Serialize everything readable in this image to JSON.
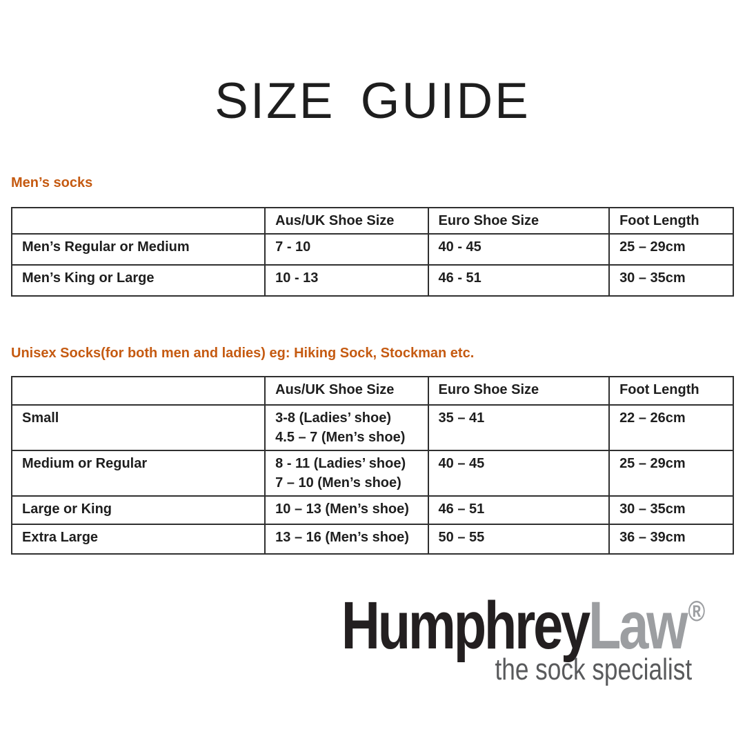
{
  "page": {
    "title": "SIZE GUIDE"
  },
  "colors": {
    "heading_orange": "#C55A11",
    "text_black": "#1e1e1e",
    "table_border": "#2f2f2f",
    "logo_black": "#231f20",
    "logo_gray": "#9c9ea1",
    "tagline_gray": "#595a5c"
  },
  "mens_socks": {
    "heading": "Men’s socks",
    "columns": [
      "",
      "Aus/UK Shoe Size",
      "Euro Shoe Size",
      "Foot Length"
    ],
    "rows": [
      {
        "size": "Men’s Regular or Medium",
        "aus_uk": [
          "7 - 10"
        ],
        "euro": [
          "40 - 45"
        ],
        "foot_length": [
          "25 – 29cm"
        ]
      },
      {
        "size": "Men’s King or Large",
        "aus_uk": [
          "10 - 13"
        ],
        "euro": [
          "46 - 51"
        ],
        "foot_length": [
          "30 – 35cm"
        ]
      }
    ]
  },
  "unisex_socks": {
    "heading": "Unisex Socks(for both men and ladies) eg: Hiking Sock, Stockman etc.",
    "columns": [
      "",
      "Aus/UK Shoe Size",
      "Euro Shoe Size",
      "Foot Length"
    ],
    "rows": [
      {
        "size": "Small",
        "aus_uk": [
          "3-8 (Ladies’ shoe)",
          "4.5 – 7 (Men’s shoe)"
        ],
        "euro": [
          "35 – 41"
        ],
        "foot_length": [
          "22 – 26cm"
        ]
      },
      {
        "size": "Medium or Regular",
        "aus_uk": [
          "8 - 11 (Ladies’ shoe)",
          "7 – 10 (Men’s shoe)"
        ],
        "euro": [
          "40 – 45"
        ],
        "foot_length": [
          "25 – 29cm"
        ]
      },
      {
        "size": "Large or King",
        "aus_uk": [
          "10 – 13 (Men’s shoe)"
        ],
        "euro": [
          "46 – 51"
        ],
        "foot_length": [
          "30 – 35cm"
        ]
      },
      {
        "size": "Extra Large",
        "aus_uk": [
          "13 – 16 (Men’s shoe)"
        ],
        "euro": [
          "50 – 55"
        ],
        "foot_length": [
          "36 – 39cm"
        ]
      }
    ]
  },
  "logo": {
    "name_black": "Humphrey",
    "name_gray": "Law",
    "registered_mark": "®",
    "tagline": "the sock specialist"
  }
}
